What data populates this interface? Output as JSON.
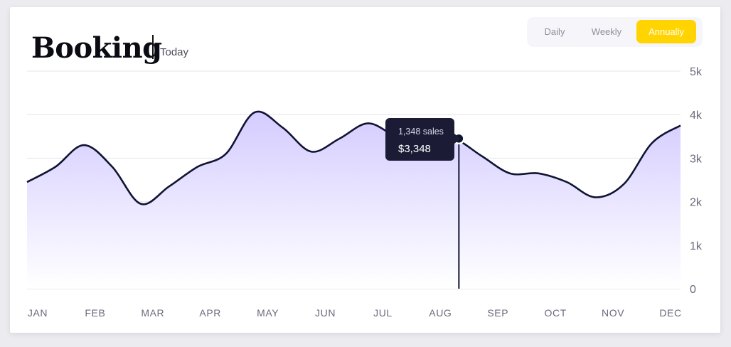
{
  "header": {
    "title": "Booking",
    "subtitle": "Today"
  },
  "period_toggle": {
    "options": [
      "Daily",
      "Weekly",
      "Annually"
    ],
    "selected": "Annually",
    "accent_color": "#ffd400"
  },
  "tooltip": {
    "sales_label": "1,348 sales",
    "value_label": "$3,348"
  },
  "colors": {
    "line": "#0f1433",
    "fill_top": "#d4ccff",
    "fill_bottom": "#ffffff",
    "grid": "#e4e4ec",
    "tooltip_bg": "#1b1b36"
  },
  "chart_data": {
    "type": "area",
    "categories": [
      "JAN",
      "FEB",
      "MAR",
      "APR",
      "MAY",
      "JUN",
      "JUL",
      "AUG",
      "SEP",
      "OCT",
      "NOV",
      "DEC"
    ],
    "y_ticks": [
      "0",
      "1k",
      "2k",
      "3k",
      "4k",
      "5k"
    ],
    "ylim": [
      0,
      5000
    ],
    "grid": true,
    "series": [
      {
        "x": [
          0,
          0.5,
          1,
          1.5,
          2,
          2.5,
          3,
          3.5,
          4,
          4.5,
          5,
          5.5,
          6,
          6.5,
          7,
          7.5,
          8,
          8.5,
          9,
          9.5,
          10,
          10.5,
          11,
          11.5
        ],
        "values": [
          2450,
          2800,
          3300,
          2800,
          1950,
          2350,
          2800,
          3100,
          4050,
          3700,
          3150,
          3450,
          3800,
          3500,
          3380,
          3450,
          3050,
          2650,
          2650,
          2450,
          2100,
          2400,
          3350,
          3750
        ]
      }
    ],
    "highlight": {
      "x": 7.6,
      "value": 3450
    }
  }
}
